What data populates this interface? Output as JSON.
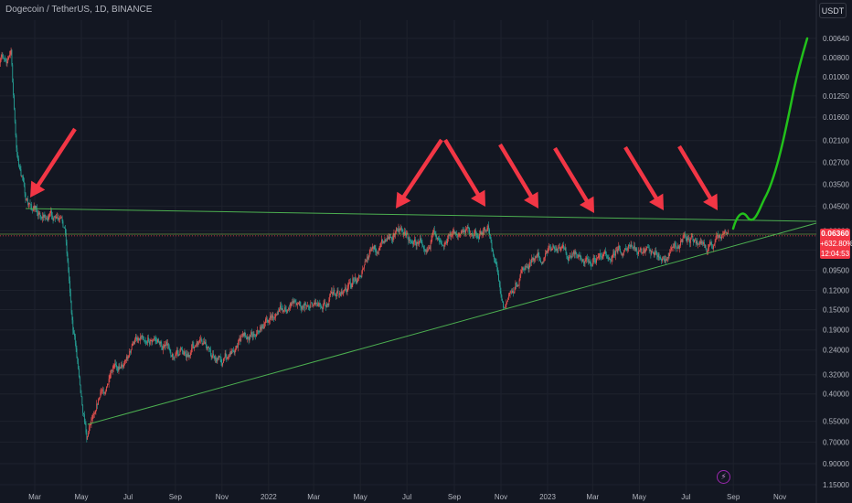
{
  "header": {
    "title": "Dogecoin / TetherUS, 1D, BINANCE",
    "currency_button": "USDT"
  },
  "price_badge": {
    "price": "0.06360",
    "change": "+632.80%",
    "countdown": "12:04:53"
  },
  "indicator_icon": "lightning-icon",
  "colors": {
    "background": "#131722",
    "grid": "#1e222d",
    "candle_up": "#26a69a",
    "candle_down": "#ef5350",
    "trend_line": "#4caf50",
    "price_line": "#f23645",
    "arrow": "#f23645",
    "projection": "#22c11b"
  },
  "chart_data": {
    "type": "candlestick",
    "symbol": "Dogecoin / TetherUS",
    "interval": "1D",
    "exchange": "BINANCE",
    "y_axis_scale": "inverted-log",
    "y_ticks": [
      "0.00640",
      "0.00800",
      "0.01000",
      "0.01250",
      "0.01600",
      "0.02100",
      "0.02700",
      "0.03500",
      "0.04500",
      "0.06000",
      "0.07500",
      "0.09500",
      "0.12000",
      "0.15000",
      "0.19000",
      "0.24000",
      "0.32000",
      "0.40000",
      "0.55000",
      "0.70000",
      "0.90000",
      "1.15000"
    ],
    "x_ticks": [
      "Mar",
      "May",
      "Jul",
      "Sep",
      "Nov",
      "2022",
      "Mar",
      "May",
      "Jul",
      "Sep",
      "Nov",
      "2023",
      "Mar",
      "May",
      "Jul",
      "Sep",
      "Nov"
    ],
    "current_price": 0.0636,
    "approx_path": [
      [
        "2021-01-15",
        0.0085
      ],
      [
        "2021-01-29",
        0.0075
      ],
      [
        "2021-02-05",
        0.024
      ],
      [
        "2021-02-20",
        0.045
      ],
      [
        "2021-03-05",
        0.048
      ],
      [
        "2021-03-25",
        0.052
      ],
      [
        "2021-04-10",
        0.062
      ],
      [
        "2021-04-20",
        0.18
      ],
      [
        "2021-05-08",
        0.62
      ],
      [
        "2021-05-20",
        0.42
      ],
      [
        "2021-06-10",
        0.33
      ],
      [
        "2021-07-20",
        0.19
      ],
      [
        "2021-09-01",
        0.25
      ],
      [
        "2021-10-01",
        0.23
      ],
      [
        "2021-11-01",
        0.27
      ],
      [
        "2021-12-01",
        0.2
      ],
      [
        "2022-01-01",
        0.17
      ],
      [
        "2022-02-01",
        0.14
      ],
      [
        "2022-03-15",
        0.13
      ],
      [
        "2022-04-15",
        0.12
      ],
      [
        "2022-05-15",
        0.08
      ],
      [
        "2022-06-15",
        0.058
      ],
      [
        "2022-07-15",
        0.068
      ],
      [
        "2022-08-15",
        0.062
      ],
      [
        "2022-09-15",
        0.061
      ],
      [
        "2022-10-15",
        0.06
      ],
      [
        "2022-10-28",
        0.095
      ],
      [
        "2022-11-05",
        0.14
      ],
      [
        "2022-12-01",
        0.095
      ],
      [
        "2023-01-01",
        0.075
      ],
      [
        "2023-02-01",
        0.082
      ],
      [
        "2023-03-01",
        0.085
      ],
      [
        "2023-04-01",
        0.072
      ],
      [
        "2023-05-01",
        0.078
      ],
      [
        "2023-06-01",
        0.085
      ],
      [
        "2023-06-25",
        0.064
      ],
      [
        "2023-07-15",
        0.07
      ],
      [
        "2023-08-05",
        0.071
      ],
      [
        "2023-08-17",
        0.066
      ],
      [
        "2023-08-25",
        0.0636
      ]
    ],
    "annotations": {
      "resistance_line": "descending green line from Feb 2021 highs to right edge",
      "support_line": "ascending green line from May 2021 lows to right edge",
      "arrows": 7,
      "projection": "green curve rising from current price toward the top-right"
    }
  }
}
